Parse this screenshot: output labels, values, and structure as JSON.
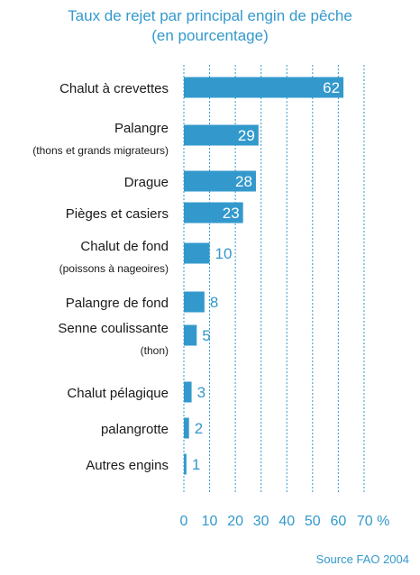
{
  "chart_data": {
    "type": "bar",
    "orientation": "horizontal",
    "title": "Taux de rejet par principal engin de pêche",
    "subtitle": "(en pourcentage)",
    "categories": [
      {
        "label": "Chalut à crevettes",
        "sublabel": "",
        "value": 62
      },
      {
        "label": "Palangre",
        "sublabel": "(thons et grands migrateurs)",
        "value": 29
      },
      {
        "label": "Drague",
        "sublabel": "",
        "value": 28
      },
      {
        "label": "Pièges et casiers",
        "sublabel": "",
        "value": 23
      },
      {
        "label": "Chalut de fond",
        "sublabel": "(poissons à nageoires)",
        "value": 10
      },
      {
        "label": "Palangre de fond",
        "sublabel": "",
        "value": 8
      },
      {
        "label": "Senne coulissante",
        "sublabel": "(thon)",
        "value": 5
      },
      {
        "label": "Chalut pélagique",
        "sublabel": "",
        "value": 3
      },
      {
        "label": "palangrotte",
        "sublabel": "",
        "value": 2
      },
      {
        "label": "Autres engins",
        "sublabel": "",
        "value": 1
      }
    ],
    "x_ticks": [
      "0",
      "10",
      "20",
      "30",
      "40",
      "50",
      "60",
      "70 %"
    ],
    "xlim": [
      0,
      80
    ],
    "grid": "vertical",
    "bar_color": "#3399cc",
    "source": "Source FAO 2004"
  }
}
